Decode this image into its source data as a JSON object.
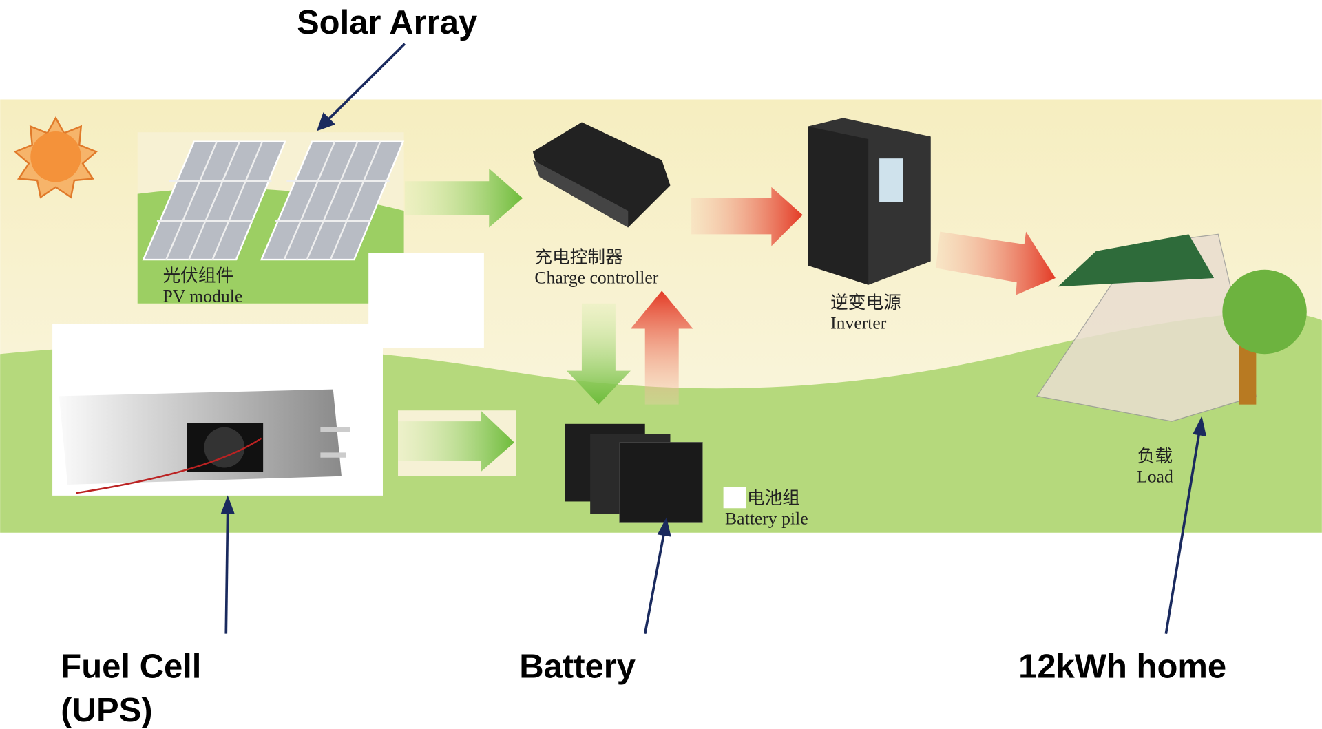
{
  "callouts": {
    "solar": "Solar Array",
    "fuel_cell": [
      "Fuel Cell",
      "(UPS)"
    ],
    "battery": "Battery",
    "home": "12kWh home"
  },
  "components": {
    "pv": {
      "zh": "光伏组件",
      "en": "PV module"
    },
    "controller": {
      "zh": "充电控制器",
      "en": "Charge controller"
    },
    "inverter": {
      "zh": "逆变电源",
      "en": "Inverter"
    },
    "battery": {
      "zh": "电池组",
      "en": "Battery pile"
    },
    "load": {
      "zh": "负载",
      "en": "Load"
    }
  }
}
